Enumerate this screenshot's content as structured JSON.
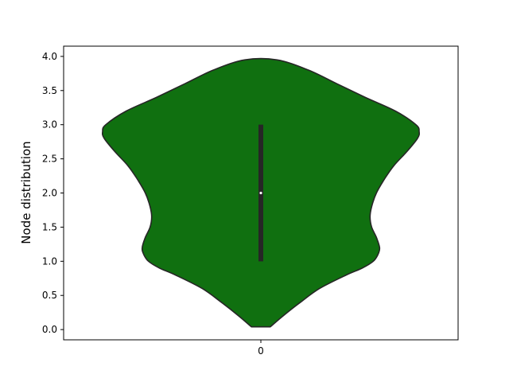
{
  "chart_data": {
    "type": "violin",
    "title": "",
    "xlabel": "",
    "ylabel": "Node distribution",
    "categories": [
      "0"
    ],
    "ylim": [
      -0.15,
      4.15
    ],
    "yticks": [
      0.0,
      0.5,
      1.0,
      1.5,
      2.0,
      2.5,
      3.0,
      3.5,
      4.0
    ],
    "ytick_labels": [
      "0.0",
      "0.5",
      "1.0",
      "1.5",
      "2.0",
      "2.5",
      "3.0",
      "3.5",
      "4.0"
    ],
    "grid": false,
    "violin": {
      "min": 0.04,
      "max": 3.95,
      "q1": 1.0,
      "median": 2.0,
      "q3": 3.0,
      "density_profile": [
        [
          0.04,
          0.06
        ],
        [
          0.2,
          0.14
        ],
        [
          0.4,
          0.25
        ],
        [
          0.6,
          0.37
        ],
        [
          0.8,
          0.54
        ],
        [
          0.9,
          0.64
        ],
        [
          1.0,
          0.71
        ],
        [
          1.1,
          0.74
        ],
        [
          1.2,
          0.75
        ],
        [
          1.35,
          0.73
        ],
        [
          1.5,
          0.7
        ],
        [
          1.65,
          0.69
        ],
        [
          1.8,
          0.7
        ],
        [
          2.0,
          0.73
        ],
        [
          2.2,
          0.78
        ],
        [
          2.4,
          0.84
        ],
        [
          2.6,
          0.92
        ],
        [
          2.8,
          0.99
        ],
        [
          2.9,
          1.0
        ],
        [
          3.0,
          0.98
        ],
        [
          3.2,
          0.85
        ],
        [
          3.4,
          0.66
        ],
        [
          3.6,
          0.48
        ],
        [
          3.8,
          0.3
        ],
        [
          3.95,
          0.1
        ]
      ]
    },
    "colors": {
      "body": "#107010",
      "edge": "#262626",
      "box": "#262626",
      "median": "#ffffff"
    }
  }
}
